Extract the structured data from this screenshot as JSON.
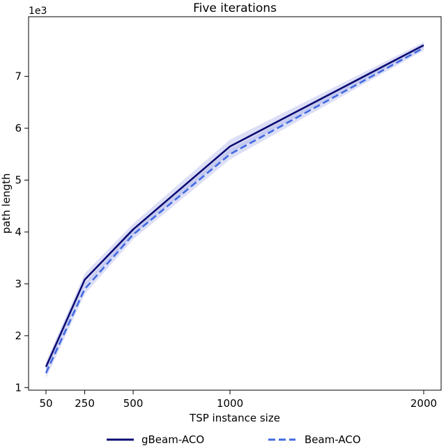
{
  "chart_data": {
    "type": "line",
    "title": "Five iterations",
    "xlabel": "TSP instance size",
    "ylabel": "path length",
    "y_offset_label": "1e3",
    "x": [
      50,
      250,
      500,
      1000,
      2000
    ],
    "x_ticks": [
      "50",
      "250",
      "500",
      "1000",
      "2000"
    ],
    "y_ticks": [
      "1",
      "2",
      "3",
      "4",
      "5",
      "6",
      "7"
    ],
    "xlim": [
      -40,
      2090
    ],
    "ylim": [
      0.95,
      8.15
    ],
    "y_scale": 1000,
    "grid": false,
    "legend_position": "bottom-center",
    "series": [
      {
        "name": "gBeam-ACO",
        "values": [
          1400,
          3080,
          4050,
          5650,
          7600
        ],
        "band_low": [
          1300,
          2960,
          3940,
          5520,
          7550
        ],
        "band_high": [
          1500,
          3200,
          4160,
          5780,
          7660
        ],
        "color": "#0b0b73",
        "dash": "solid"
      },
      {
        "name": "Beam-ACO",
        "values": [
          1280,
          2900,
          3950,
          5500,
          7550
        ],
        "band_low": [
          1180,
          2800,
          3860,
          5400,
          7500
        ],
        "band_high": [
          1380,
          3000,
          4040,
          5600,
          7600
        ],
        "color": "#4169e1",
        "dash": "dashed"
      }
    ],
    "band_color": "#9aa3e6"
  }
}
